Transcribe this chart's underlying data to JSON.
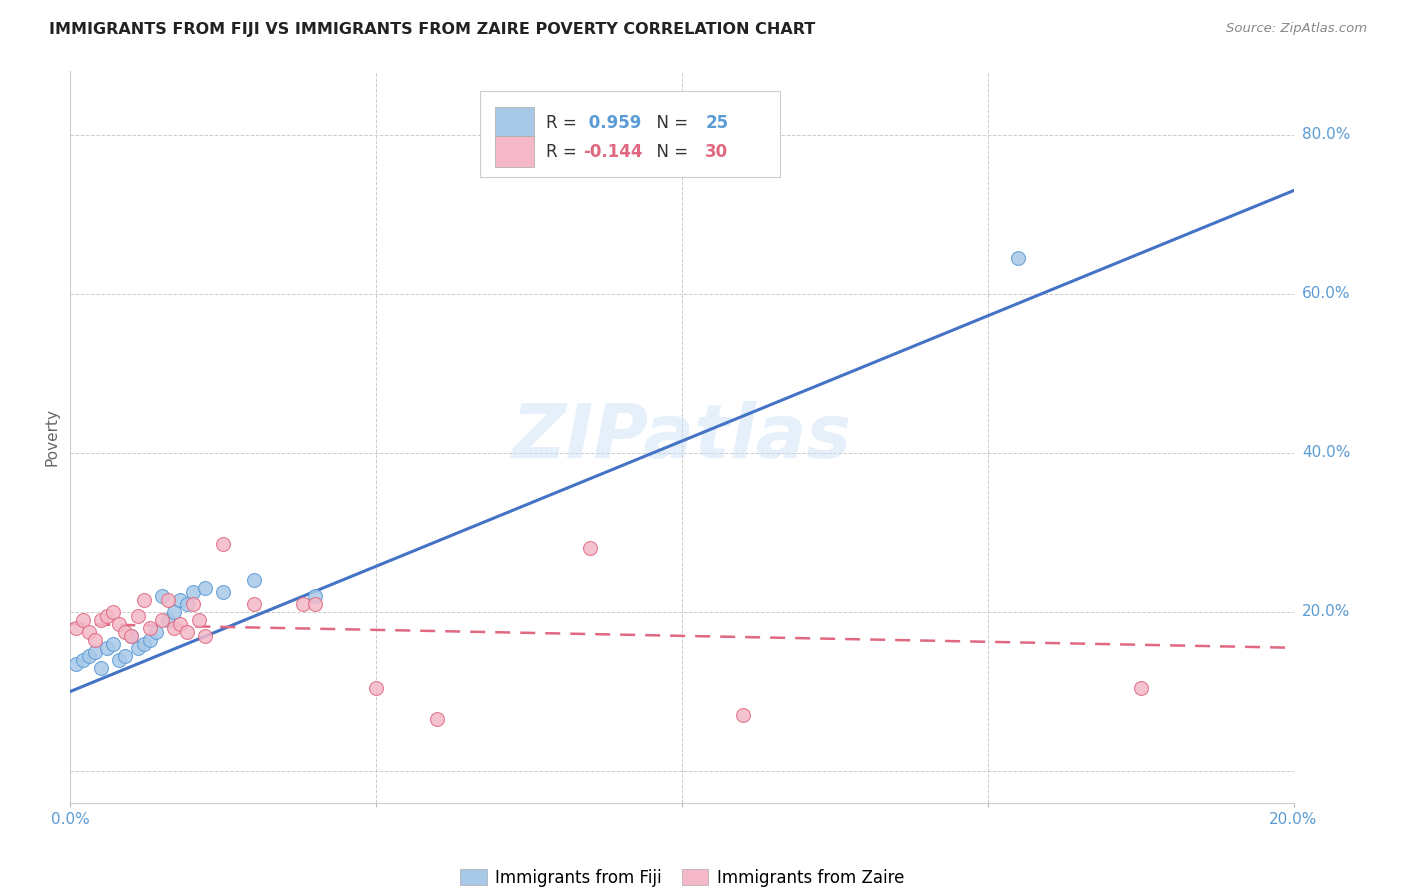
{
  "title": "IMMIGRANTS FROM FIJI VS IMMIGRANTS FROM ZAIRE POVERTY CORRELATION CHART",
  "source": "Source: ZipAtlas.com",
  "ylabel": "Poverty",
  "xlim": [
    0.0,
    0.2
  ],
  "ylim": [
    -0.04,
    0.88
  ],
  "xticks": [
    0.0,
    0.05,
    0.1,
    0.15,
    0.2
  ],
  "yticks": [
    0.0,
    0.2,
    0.4,
    0.6,
    0.8
  ],
  "fiji_color": "#a8c8e8",
  "fiji_edge_color": "#5b9bd5",
  "zaire_color": "#f4b8c8",
  "zaire_edge_color": "#e06880",
  "fiji_line_color": "#4472c4",
  "zaire_line_color": "#e06880",
  "fiji_R": 0.959,
  "fiji_N": 25,
  "zaire_R": -0.144,
  "zaire_N": 30,
  "watermark": "ZIPatlas",
  "fiji_line_x0": 0.0,
  "fiji_line_y0": 0.1,
  "fiji_line_x1": 0.2,
  "fiji_line_y1": 0.73,
  "zaire_line_x0": 0.0,
  "zaire_line_y0": 0.185,
  "zaire_line_x1": 0.2,
  "zaire_line_y1": 0.155,
  "fiji_scatter_x": [
    0.001,
    0.002,
    0.003,
    0.004,
    0.005,
    0.006,
    0.007,
    0.008,
    0.009,
    0.01,
    0.011,
    0.012,
    0.013,
    0.014,
    0.015,
    0.016,
    0.017,
    0.018,
    0.019,
    0.02,
    0.022,
    0.025,
    0.03,
    0.04,
    0.155
  ],
  "fiji_scatter_y": [
    0.135,
    0.14,
    0.145,
    0.15,
    0.13,
    0.155,
    0.16,
    0.14,
    0.145,
    0.17,
    0.155,
    0.16,
    0.165,
    0.175,
    0.22,
    0.19,
    0.2,
    0.215,
    0.21,
    0.225,
    0.23,
    0.225,
    0.24,
    0.22,
    0.645
  ],
  "zaire_scatter_x": [
    0.001,
    0.002,
    0.003,
    0.004,
    0.005,
    0.006,
    0.007,
    0.008,
    0.009,
    0.01,
    0.011,
    0.012,
    0.013,
    0.015,
    0.016,
    0.017,
    0.018,
    0.019,
    0.02,
    0.021,
    0.022,
    0.025,
    0.03,
    0.038,
    0.04,
    0.05,
    0.06,
    0.085,
    0.11,
    0.175
  ],
  "zaire_scatter_y": [
    0.18,
    0.19,
    0.175,
    0.165,
    0.19,
    0.195,
    0.2,
    0.185,
    0.175,
    0.17,
    0.195,
    0.215,
    0.18,
    0.19,
    0.215,
    0.18,
    0.185,
    0.175,
    0.21,
    0.19,
    0.17,
    0.285,
    0.21,
    0.21,
    0.21,
    0.105,
    0.065,
    0.28,
    0.07,
    0.105
  ],
  "background_color": "#ffffff",
  "grid_color": "#cccccc",
  "right_ytick_vals": [
    0.2,
    0.4,
    0.6,
    0.8
  ],
  "right_ytick_labels": [
    "20.0%",
    "40.0%",
    "60.0%",
    "80.0%"
  ],
  "legend_fiji_label": "Immigrants from Fiji",
  "legend_zaire_label": "Immigrants from Zaire"
}
